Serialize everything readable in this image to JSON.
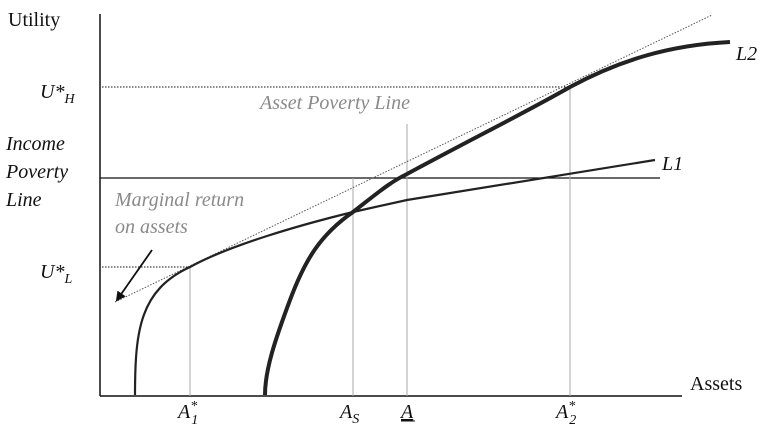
{
  "axes": {
    "y": "Utility",
    "x": "Assets"
  },
  "curves": {
    "l1": "L1",
    "l2": "L2"
  },
  "levels": {
    "high": {
      "base": "U*",
      "sub": "H"
    },
    "low": {
      "base": "U*",
      "sub": "L"
    }
  },
  "annotations": {
    "asset_poverty_line": "Asset Poverty Line",
    "income_poverty_line": [
      "Income",
      "Poverty",
      "Line"
    ],
    "marginal_return": [
      "Marginal return",
      "on assets"
    ]
  },
  "asset_points": {
    "a1": {
      "base": "A",
      "sup": "*",
      "sub": "1"
    },
    "as": {
      "base": "A",
      "sub": "S"
    },
    "a": {
      "base": "A"
    },
    "a2": {
      "base": "A",
      "sup": "*",
      "sub": "2"
    }
  }
}
